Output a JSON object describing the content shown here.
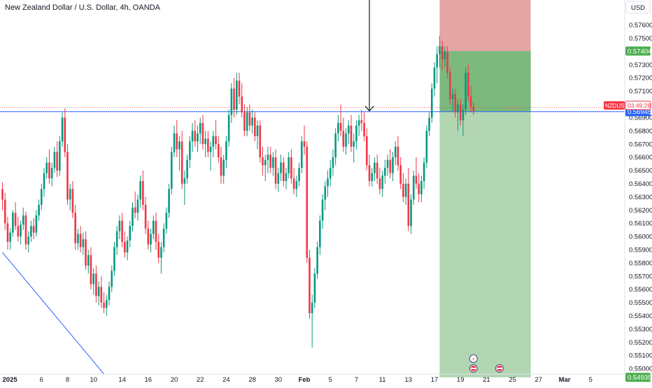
{
  "header": {
    "title": "New Zealand Dollar / U.S. Dollar, 4h, OANDA",
    "currency_button": "USD"
  },
  "colors": {
    "up": "#089981",
    "down": "#f23645",
    "grid_text": "#131722",
    "stop_zone": "#e6a5a5",
    "target_dark": "#7cb97c",
    "target_light": "#b1d6b1",
    "support_line": "#2962ff",
    "trend_line": "#2962ff",
    "entry_tag": "#4caf50",
    "symbol_tag": "#f23645",
    "ref_price_tag": "#2962ff",
    "event_tag_dark": "#3d4a78"
  },
  "chart_data": {
    "type": "candlestick",
    "symbol": "NZDUSD",
    "timeframe": "4h",
    "ylim": [
      0.5496,
      0.5779
    ],
    "y_ticks": [
      0.55,
      0.551,
      0.552,
      0.553,
      0.554,
      0.555,
      0.556,
      0.557,
      0.558,
      0.559,
      0.56,
      0.561,
      0.562,
      0.563,
      0.564,
      0.565,
      0.566,
      0.567,
      0.568,
      0.569,
      0.571,
      0.572,
      0.573,
      0.575,
      0.576
    ],
    "y_tick_labels": [
      "0.55000",
      "0.55100",
      "0.55200",
      "0.55300",
      "0.55400",
      "0.55500",
      "0.55600",
      "0.55700",
      "0.55800",
      "0.55900",
      "0.56000",
      "0.56100",
      "0.56200",
      "0.56300",
      "0.56400",
      "0.56500",
      "0.56600",
      "0.56700",
      "0.56800",
      "0.56900",
      "0.57100",
      "0.57200",
      "0.57300",
      "0.57500",
      "0.57600"
    ],
    "x_ticks": [
      "2025",
      "6",
      "8",
      "10",
      "14",
      "16",
      "20",
      "22",
      "24",
      "28",
      "30",
      "Feb",
      "5",
      "7",
      "11",
      "13",
      "17",
      "19",
      "21",
      "25",
      "27",
      "Mar",
      "5"
    ],
    "x_tick_index": [
      0,
      15,
      25,
      35,
      46,
      56,
      66,
      76,
      86,
      96,
      106,
      116,
      126,
      136,
      146,
      156,
      166,
      176,
      186,
      196,
      206,
      216,
      226
    ],
    "price_labels": {
      "entry": "0.57404",
      "symbol": "NZDUSD",
      "countdown": "03:49:26",
      "current_price": "0.56945",
      "last_visible": "0.54935"
    },
    "levels": {
      "stop_top": 0.5779,
      "entry": 0.57404,
      "target_band_bottom": 0.56945,
      "target_bottom": 0.54935,
      "support_line": 0.56945,
      "current_price": 0.56945
    },
    "position_zone": {
      "start_index": 168,
      "end_index": 203,
      "direction": "long"
    },
    "arrow_annotation": {
      "index": 141,
      "price": 0.56945
    },
    "trend_line": {
      "start_index": 0,
      "start_price": 0.5588,
      "end_index": 39,
      "end_price": 0.5496
    },
    "event_markers": [
      {
        "index": 181,
        "label": "⚡"
      },
      {
        "index": 181,
        "label": "US"
      },
      {
        "index": 191,
        "label": "US"
      }
    ],
    "candles": [
      [
        0.5636,
        0.5641,
        0.562,
        0.5628
      ],
      [
        0.5628,
        0.5633,
        0.5605,
        0.561
      ],
      [
        0.561,
        0.5615,
        0.559,
        0.5596
      ],
      [
        0.5596,
        0.5606,
        0.559,
        0.5603
      ],
      [
        0.5603,
        0.562,
        0.56,
        0.5618
      ],
      [
        0.5618,
        0.5626,
        0.5605,
        0.5608
      ],
      [
        0.5608,
        0.5615,
        0.5596,
        0.56
      ],
      [
        0.56,
        0.5612,
        0.5594,
        0.5609
      ],
      [
        0.5609,
        0.5622,
        0.5605,
        0.5616
      ],
      [
        0.5616,
        0.5619,
        0.559,
        0.5594
      ],
      [
        0.5594,
        0.5604,
        0.5588,
        0.56
      ],
      [
        0.56,
        0.5612,
        0.5596,
        0.5608
      ],
      [
        0.5608,
        0.5614,
        0.5598,
        0.5603
      ],
      [
        0.5603,
        0.562,
        0.56,
        0.5616
      ],
      [
        0.5616,
        0.5628,
        0.5612,
        0.5624
      ],
      [
        0.5624,
        0.564,
        0.562,
        0.5636
      ],
      [
        0.5636,
        0.5652,
        0.563,
        0.5648
      ],
      [
        0.5648,
        0.566,
        0.5644,
        0.5656
      ],
      [
        0.5656,
        0.5666,
        0.564,
        0.5644
      ],
      [
        0.5644,
        0.5656,
        0.5638,
        0.5652
      ],
      [
        0.5652,
        0.5668,
        0.5648,
        0.5664
      ],
      [
        0.5664,
        0.5672,
        0.5645,
        0.565
      ],
      [
        0.565,
        0.5676,
        0.5646,
        0.5672
      ],
      [
        0.5672,
        0.5694,
        0.5668,
        0.569
      ],
      [
        0.569,
        0.5697,
        0.566,
        0.5664
      ],
      [
        0.5664,
        0.567,
        0.5624,
        0.5628
      ],
      [
        0.5628,
        0.564,
        0.562,
        0.5636
      ],
      [
        0.5636,
        0.5642,
        0.5614,
        0.5618
      ],
      [
        0.5618,
        0.5624,
        0.559,
        0.5595
      ],
      [
        0.5595,
        0.5606,
        0.559,
        0.5602
      ],
      [
        0.5602,
        0.5608,
        0.5588,
        0.5592
      ],
      [
        0.5592,
        0.5603,
        0.5586,
        0.5598
      ],
      [
        0.5598,
        0.5604,
        0.5575,
        0.5578
      ],
      [
        0.5578,
        0.559,
        0.5572,
        0.5586
      ],
      [
        0.5586,
        0.5592,
        0.556,
        0.5564
      ],
      [
        0.5564,
        0.5576,
        0.5556,
        0.5572
      ],
      [
        0.5572,
        0.5578,
        0.555,
        0.5555
      ],
      [
        0.5555,
        0.5566,
        0.5548,
        0.5562
      ],
      [
        0.5562,
        0.557,
        0.5546,
        0.555
      ],
      [
        0.555,
        0.5558,
        0.5542,
        0.5546
      ],
      [
        0.5546,
        0.5556,
        0.554,
        0.5552
      ],
      [
        0.5552,
        0.5566,
        0.5548,
        0.5562
      ],
      [
        0.5562,
        0.5578,
        0.5558,
        0.5574
      ],
      [
        0.5574,
        0.5596,
        0.557,
        0.5592
      ],
      [
        0.5592,
        0.5608,
        0.5586,
        0.5604
      ],
      [
        0.5604,
        0.5616,
        0.5598,
        0.5612
      ],
      [
        0.5612,
        0.5618,
        0.5592,
        0.5596
      ],
      [
        0.5596,
        0.5604,
        0.5584,
        0.5588
      ],
      [
        0.5588,
        0.56,
        0.5582,
        0.5597
      ],
      [
        0.5597,
        0.5612,
        0.5592,
        0.5608
      ],
      [
        0.5608,
        0.5626,
        0.5604,
        0.5622
      ],
      [
        0.5622,
        0.5634,
        0.5614,
        0.5618
      ],
      [
        0.5618,
        0.5632,
        0.5612,
        0.5628
      ],
      [
        0.5628,
        0.5646,
        0.5622,
        0.5642
      ],
      [
        0.5642,
        0.565,
        0.562,
        0.5624
      ],
      [
        0.5624,
        0.563,
        0.5602,
        0.5606
      ],
      [
        0.5606,
        0.5612,
        0.559,
        0.5594
      ],
      [
        0.5594,
        0.5606,
        0.5588,
        0.5602
      ],
      [
        0.5602,
        0.5616,
        0.5598,
        0.5612
      ],
      [
        0.5612,
        0.5618,
        0.559,
        0.5596
      ],
      [
        0.5596,
        0.5602,
        0.558,
        0.5584
      ],
      [
        0.5584,
        0.5596,
        0.5572,
        0.5592
      ],
      [
        0.5592,
        0.561,
        0.5588,
        0.5606
      ],
      [
        0.5606,
        0.5622,
        0.5602,
        0.5618
      ],
      [
        0.5618,
        0.564,
        0.5614,
        0.5636
      ],
      [
        0.5636,
        0.5668,
        0.5632,
        0.5664
      ],
      [
        0.5664,
        0.5684,
        0.566,
        0.5678
      ],
      [
        0.5678,
        0.5688,
        0.566,
        0.5666
      ],
      [
        0.5666,
        0.5676,
        0.565,
        0.5672
      ],
      [
        0.5672,
        0.568,
        0.5636,
        0.564
      ],
      [
        0.564,
        0.565,
        0.5624,
        0.5644
      ],
      [
        0.5644,
        0.5662,
        0.564,
        0.5658
      ],
      [
        0.5658,
        0.5676,
        0.5652,
        0.5672
      ],
      [
        0.5672,
        0.5686,
        0.5664,
        0.568
      ],
      [
        0.568,
        0.5688,
        0.5668,
        0.5672
      ],
      [
        0.5672,
        0.5684,
        0.5664,
        0.5678
      ],
      [
        0.5678,
        0.569,
        0.567,
        0.5686
      ],
      [
        0.5686,
        0.5692,
        0.5666,
        0.567
      ],
      [
        0.567,
        0.568,
        0.566,
        0.5674
      ],
      [
        0.5674,
        0.568,
        0.566,
        0.5664
      ],
      [
        0.5664,
        0.5672,
        0.565,
        0.5668
      ],
      [
        0.5668,
        0.568,
        0.566,
        0.5676
      ],
      [
        0.5676,
        0.5688,
        0.5666,
        0.567
      ],
      [
        0.567,
        0.5676,
        0.5656,
        0.566
      ],
      [
        0.566,
        0.5668,
        0.564,
        0.5646
      ],
      [
        0.5646,
        0.5662,
        0.564,
        0.5658
      ],
      [
        0.5658,
        0.5676,
        0.5652,
        0.5672
      ],
      [
        0.5672,
        0.5696,
        0.5668,
        0.5692
      ],
      [
        0.5692,
        0.5716,
        0.5686,
        0.5712
      ],
      [
        0.5712,
        0.572,
        0.569,
        0.5696
      ],
      [
        0.5696,
        0.5724,
        0.5692,
        0.5718
      ],
      [
        0.5718,
        0.5724,
        0.57,
        0.5706
      ],
      [
        0.5706,
        0.5716,
        0.569,
        0.5694
      ],
      [
        0.5694,
        0.57,
        0.5676,
        0.568
      ],
      [
        0.568,
        0.5698,
        0.5676,
        0.5694
      ],
      [
        0.5694,
        0.57,
        0.568,
        0.5684
      ],
      [
        0.5684,
        0.5696,
        0.5678,
        0.569
      ],
      [
        0.569,
        0.5694,
        0.5672,
        0.5676
      ],
      [
        0.5676,
        0.5688,
        0.5666,
        0.5684
      ],
      [
        0.5684,
        0.5688,
        0.5656,
        0.566
      ],
      [
        0.566,
        0.5668,
        0.5646,
        0.5654
      ],
      [
        0.5654,
        0.5662,
        0.5642,
        0.5658
      ],
      [
        0.5658,
        0.5668,
        0.5648,
        0.5662
      ],
      [
        0.5662,
        0.5668,
        0.5648,
        0.5652
      ],
      [
        0.5652,
        0.5664,
        0.5646,
        0.566
      ],
      [
        0.566,
        0.5666,
        0.5636,
        0.564
      ],
      [
        0.564,
        0.5652,
        0.5634,
        0.5648
      ],
      [
        0.5648,
        0.5662,
        0.5642,
        0.5656
      ],
      [
        0.5656,
        0.566,
        0.5638,
        0.5642
      ],
      [
        0.5642,
        0.5652,
        0.5636,
        0.5648
      ],
      [
        0.5648,
        0.5664,
        0.5644,
        0.566
      ],
      [
        0.566,
        0.5666,
        0.564,
        0.5644
      ],
      [
        0.5644,
        0.5652,
        0.5632,
        0.5636
      ],
      [
        0.5636,
        0.5646,
        0.563,
        0.5642
      ],
      [
        0.5642,
        0.5656,
        0.5638,
        0.5652
      ],
      [
        0.5652,
        0.5676,
        0.5648,
        0.5672
      ],
      [
        0.5672,
        0.5684,
        0.5662,
        0.5668
      ],
      [
        0.5668,
        0.5672,
        0.558,
        0.5584
      ],
      [
        0.5584,
        0.559,
        0.5538,
        0.5542
      ],
      [
        0.5542,
        0.5556,
        0.5516,
        0.555
      ],
      [
        0.555,
        0.5576,
        0.5546,
        0.5572
      ],
      [
        0.5572,
        0.5596,
        0.5568,
        0.5592
      ],
      [
        0.5592,
        0.5616,
        0.5586,
        0.5612
      ],
      [
        0.5612,
        0.5632,
        0.5606,
        0.5628
      ],
      [
        0.5628,
        0.5642,
        0.562,
        0.5638
      ],
      [
        0.5638,
        0.565,
        0.563,
        0.5644
      ],
      [
        0.5644,
        0.5658,
        0.5638,
        0.5652
      ],
      [
        0.5652,
        0.5666,
        0.5646,
        0.566
      ],
      [
        0.566,
        0.5682,
        0.5654,
        0.5678
      ],
      [
        0.5678,
        0.5692,
        0.5672,
        0.5686
      ],
      [
        0.5686,
        0.57,
        0.5676,
        0.568
      ],
      [
        0.568,
        0.569,
        0.5664,
        0.5668
      ],
      [
        0.5668,
        0.5682,
        0.5662,
        0.5678
      ],
      [
        0.5678,
        0.5688,
        0.567,
        0.5684
      ],
      [
        0.5684,
        0.5692,
        0.5664,
        0.5668
      ],
      [
        0.5668,
        0.5678,
        0.5656,
        0.5672
      ],
      [
        0.5672,
        0.5688,
        0.5666,
        0.5684
      ],
      [
        0.5684,
        0.5692,
        0.5676,
        0.5688
      ],
      [
        0.5688,
        0.5696,
        0.568,
        0.5686
      ],
      [
        0.5686,
        0.5694,
        0.5672,
        0.5676
      ],
      [
        0.5676,
        0.5682,
        0.565,
        0.5654
      ],
      [
        0.5654,
        0.5662,
        0.5638,
        0.5642
      ],
      [
        0.5642,
        0.5652,
        0.5638,
        0.5648
      ],
      [
        0.5648,
        0.566,
        0.5642,
        0.5656
      ],
      [
        0.5656,
        0.5662,
        0.564,
        0.5644
      ],
      [
        0.5644,
        0.5652,
        0.5632,
        0.5636
      ],
      [
        0.5636,
        0.565,
        0.563,
        0.5646
      ],
      [
        0.5646,
        0.5658,
        0.564,
        0.5652
      ],
      [
        0.5652,
        0.5662,
        0.5646,
        0.5658
      ],
      [
        0.5658,
        0.5666,
        0.5644,
        0.5648
      ],
      [
        0.5648,
        0.5664,
        0.5642,
        0.566
      ],
      [
        0.566,
        0.5672,
        0.5654,
        0.5668
      ],
      [
        0.5668,
        0.5676,
        0.565,
        0.5654
      ],
      [
        0.5654,
        0.566,
        0.5636,
        0.564
      ],
      [
        0.564,
        0.5648,
        0.5626,
        0.563
      ],
      [
        0.563,
        0.5644,
        0.5624,
        0.564
      ],
      [
        0.564,
        0.5652,
        0.5604,
        0.5608
      ],
      [
        0.5608,
        0.5632,
        0.5602,
        0.5628
      ],
      [
        0.5628,
        0.565,
        0.5624,
        0.5646
      ],
      [
        0.5646,
        0.566,
        0.5636,
        0.564
      ],
      [
        0.564,
        0.5648,
        0.5626,
        0.5632
      ],
      [
        0.5632,
        0.5646,
        0.5626,
        0.5642
      ],
      [
        0.5642,
        0.566,
        0.5636,
        0.5656
      ],
      [
        0.5656,
        0.5684,
        0.5652,
        0.568
      ],
      [
        0.568,
        0.5694,
        0.5676,
        0.569
      ],
      [
        0.569,
        0.5716,
        0.5686,
        0.5712
      ],
      [
        0.5712,
        0.5732,
        0.5706,
        0.5728
      ],
      [
        0.5728,
        0.5744,
        0.5716,
        0.5738
      ],
      [
        0.5738,
        0.5752,
        0.5728,
        0.5744
      ],
      [
        0.5744,
        0.5748,
        0.5726,
        0.5734
      ],
      [
        0.5734,
        0.5744,
        0.5728,
        0.574
      ],
      [
        0.574,
        0.5744,
        0.572,
        0.5724
      ],
      [
        0.5724,
        0.5728,
        0.57,
        0.5704
      ],
      [
        0.5704,
        0.5712,
        0.5694,
        0.5708
      ],
      [
        0.5708,
        0.5712,
        0.569,
        0.5694
      ],
      [
        0.5694,
        0.5704,
        0.568,
        0.57
      ],
      [
        0.57,
        0.5704,
        0.5684,
        0.5688
      ],
      [
        0.5688,
        0.57,
        0.5676,
        0.5696
      ],
      [
        0.5696,
        0.5728,
        0.5692,
        0.5724
      ],
      [
        0.5724,
        0.573,
        0.5702,
        0.5706
      ],
      [
        0.5706,
        0.5714,
        0.5694,
        0.5698
      ],
      [
        0.5698,
        0.5702,
        0.5692,
        0.5695
      ]
    ]
  }
}
